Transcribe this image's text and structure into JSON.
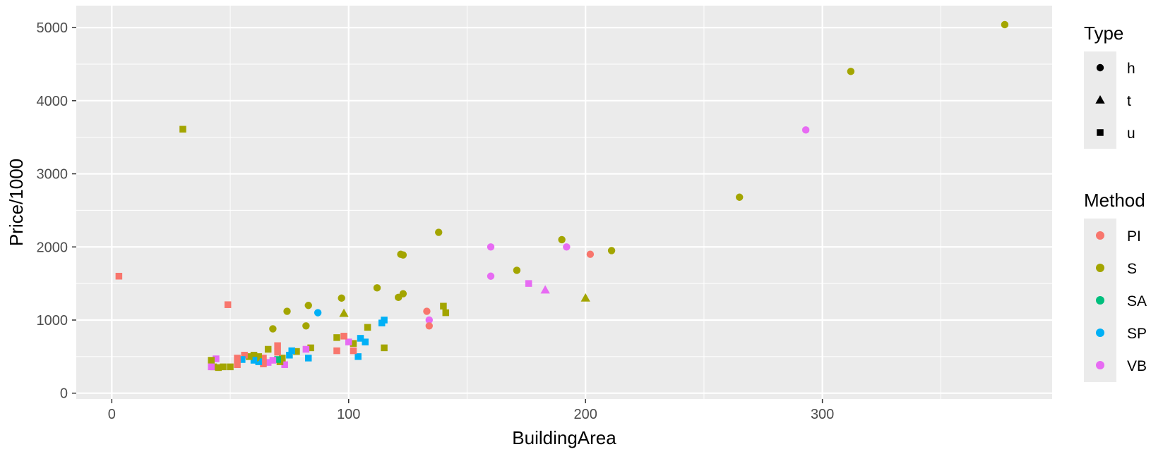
{
  "chart_data": {
    "type": "scatter",
    "title": "",
    "xlabel": "BuildingArea",
    "ylabel": "Price/1000",
    "xlim": [
      -15,
      397
    ],
    "ylim": [
      -80,
      5300
    ],
    "x_ticks": [
      0,
      100,
      200,
      300
    ],
    "y_ticks": [
      0,
      1000,
      2000,
      3000,
      4000,
      5000
    ],
    "grid": true,
    "legend_placement": "right",
    "legends": {
      "type": {
        "title": "Type",
        "entries": [
          {
            "label": "h",
            "shape": "circle"
          },
          {
            "label": "t",
            "shape": "triangle"
          },
          {
            "label": "u",
            "shape": "square"
          }
        ]
      },
      "method": {
        "title": "Method",
        "entries": [
          {
            "label": "PI",
            "color": "#F8766D"
          },
          {
            "label": "S",
            "color": "#A3A500"
          },
          {
            "label": "SA",
            "color": "#00BF7D"
          },
          {
            "label": "SP",
            "color": "#00B0F6"
          },
          {
            "label": "VB",
            "color": "#E76BF3"
          }
        ]
      }
    },
    "points": [
      {
        "x": 377,
        "y": 5040,
        "type": "h",
        "method": "S"
      },
      {
        "x": 312,
        "y": 4400,
        "type": "h",
        "method": "S"
      },
      {
        "x": 293,
        "y": 3600,
        "type": "h",
        "method": "VB"
      },
      {
        "x": 265,
        "y": 2680,
        "type": "h",
        "method": "S"
      },
      {
        "x": 211,
        "y": 1950,
        "type": "h",
        "method": "S"
      },
      {
        "x": 202,
        "y": 1900,
        "type": "h",
        "method": "PI"
      },
      {
        "x": 200,
        "y": 1300,
        "type": "t",
        "method": "S"
      },
      {
        "x": 190,
        "y": 2100,
        "type": "h",
        "method": "S"
      },
      {
        "x": 192,
        "y": 2000,
        "type": "h",
        "method": "VB"
      },
      {
        "x": 183,
        "y": 1410,
        "type": "t",
        "method": "VB"
      },
      {
        "x": 176,
        "y": 1500,
        "type": "u",
        "method": "VB"
      },
      {
        "x": 171,
        "y": 1680,
        "type": "h",
        "method": "S"
      },
      {
        "x": 160,
        "y": 2000,
        "type": "h",
        "method": "VB"
      },
      {
        "x": 160,
        "y": 1600,
        "type": "h",
        "method": "VB"
      },
      {
        "x": 138,
        "y": 2200,
        "type": "h",
        "method": "S"
      },
      {
        "x": 141,
        "y": 1100,
        "type": "u",
        "method": "S"
      },
      {
        "x": 140,
        "y": 1190,
        "type": "u",
        "method": "S"
      },
      {
        "x": 134,
        "y": 1000,
        "type": "h",
        "method": "VB"
      },
      {
        "x": 134,
        "y": 920,
        "type": "h",
        "method": "PI"
      },
      {
        "x": 133,
        "y": 1120,
        "type": "h",
        "method": "PI"
      },
      {
        "x": 122,
        "y": 1900,
        "type": "h",
        "method": "S"
      },
      {
        "x": 123,
        "y": 1890,
        "type": "h",
        "method": "S"
      },
      {
        "x": 123,
        "y": 1360,
        "type": "h",
        "method": "S"
      },
      {
        "x": 121,
        "y": 1310,
        "type": "h",
        "method": "S"
      },
      {
        "x": 115,
        "y": 1000,
        "type": "u",
        "method": "SP"
      },
      {
        "x": 114,
        "y": 960,
        "type": "u",
        "method": "SP"
      },
      {
        "x": 115,
        "y": 620,
        "type": "u",
        "method": "S"
      },
      {
        "x": 112,
        "y": 1440,
        "type": "h",
        "method": "S"
      },
      {
        "x": 108,
        "y": 900,
        "type": "u",
        "method": "S"
      },
      {
        "x": 107,
        "y": 700,
        "type": "u",
        "method": "SP"
      },
      {
        "x": 105,
        "y": 750,
        "type": "u",
        "method": "SP"
      },
      {
        "x": 104,
        "y": 500,
        "type": "u",
        "method": "SP"
      },
      {
        "x": 102,
        "y": 580,
        "type": "u",
        "method": "PI"
      },
      {
        "x": 102,
        "y": 680,
        "type": "u",
        "method": "S"
      },
      {
        "x": 100,
        "y": 700,
        "type": "u",
        "method": "VB"
      },
      {
        "x": 98,
        "y": 1090,
        "type": "t",
        "method": "S"
      },
      {
        "x": 97,
        "y": 1300,
        "type": "h",
        "method": "S"
      },
      {
        "x": 98,
        "y": 780,
        "type": "u",
        "method": "PI"
      },
      {
        "x": 95,
        "y": 760,
        "type": "u",
        "method": "S"
      },
      {
        "x": 95,
        "y": 580,
        "type": "u",
        "method": "PI"
      },
      {
        "x": 87,
        "y": 1100,
        "type": "h",
        "method": "SP"
      },
      {
        "x": 83,
        "y": 1200,
        "type": "h",
        "method": "S"
      },
      {
        "x": 82,
        "y": 920,
        "type": "h",
        "method": "S"
      },
      {
        "x": 84,
        "y": 620,
        "type": "u",
        "method": "S"
      },
      {
        "x": 83,
        "y": 480,
        "type": "u",
        "method": "SP"
      },
      {
        "x": 82,
        "y": 600,
        "type": "u",
        "method": "VB"
      },
      {
        "x": 78,
        "y": 570,
        "type": "u",
        "method": "S"
      },
      {
        "x": 76,
        "y": 580,
        "type": "u",
        "method": "SP"
      },
      {
        "x": 74,
        "y": 1120,
        "type": "h",
        "method": "S"
      },
      {
        "x": 75,
        "y": 520,
        "type": "u",
        "method": "SP"
      },
      {
        "x": 73,
        "y": 390,
        "type": "u",
        "method": "VB"
      },
      {
        "x": 72,
        "y": 480,
        "type": "u",
        "method": "S"
      },
      {
        "x": 70,
        "y": 650,
        "type": "u",
        "method": "PI"
      },
      {
        "x": 70,
        "y": 560,
        "type": "u",
        "method": "PI"
      },
      {
        "x": 71,
        "y": 430,
        "type": "u",
        "method": "S"
      },
      {
        "x": 70,
        "y": 460,
        "type": "u",
        "method": "SA"
      },
      {
        "x": 68,
        "y": 880,
        "type": "h",
        "method": "S"
      },
      {
        "x": 68,
        "y": 450,
        "type": "u",
        "method": "VB"
      },
      {
        "x": 66,
        "y": 600,
        "type": "u",
        "method": "S"
      },
      {
        "x": 66,
        "y": 420,
        "type": "u",
        "method": "VB"
      },
      {
        "x": 64,
        "y": 480,
        "type": "u",
        "method": "PI"
      },
      {
        "x": 64,
        "y": 400,
        "type": "u",
        "method": "PI"
      },
      {
        "x": 62,
        "y": 500,
        "type": "u",
        "method": "S"
      },
      {
        "x": 62,
        "y": 430,
        "type": "u",
        "method": "SP"
      },
      {
        "x": 61,
        "y": 480,
        "type": "h",
        "method": "S"
      },
      {
        "x": 60,
        "y": 520,
        "type": "u",
        "method": "S"
      },
      {
        "x": 60,
        "y": 450,
        "type": "u",
        "method": "SP"
      },
      {
        "x": 58,
        "y": 500,
        "type": "u",
        "method": "S"
      },
      {
        "x": 56,
        "y": 520,
        "type": "u",
        "method": "PI"
      },
      {
        "x": 55,
        "y": 460,
        "type": "u",
        "method": "SP"
      },
      {
        "x": 53,
        "y": 480,
        "type": "u",
        "method": "PI"
      },
      {
        "x": 53,
        "y": 390,
        "type": "u",
        "method": "PI"
      },
      {
        "x": 49,
        "y": 1210,
        "type": "u",
        "method": "PI"
      },
      {
        "x": 50,
        "y": 360,
        "type": "u",
        "method": "S"
      },
      {
        "x": 47,
        "y": 360,
        "type": "u",
        "method": "S"
      },
      {
        "x": 45,
        "y": 350,
        "type": "u",
        "method": "S"
      },
      {
        "x": 44,
        "y": 470,
        "type": "u",
        "method": "VB"
      },
      {
        "x": 43,
        "y": 360,
        "type": "u",
        "method": "S"
      },
      {
        "x": 42,
        "y": 450,
        "type": "u",
        "method": "S"
      },
      {
        "x": 42,
        "y": 360,
        "type": "u",
        "method": "VB"
      },
      {
        "x": 30,
        "y": 3610,
        "type": "u",
        "method": "S"
      },
      {
        "x": 3,
        "y": 1600,
        "type": "u",
        "method": "PI"
      }
    ]
  }
}
